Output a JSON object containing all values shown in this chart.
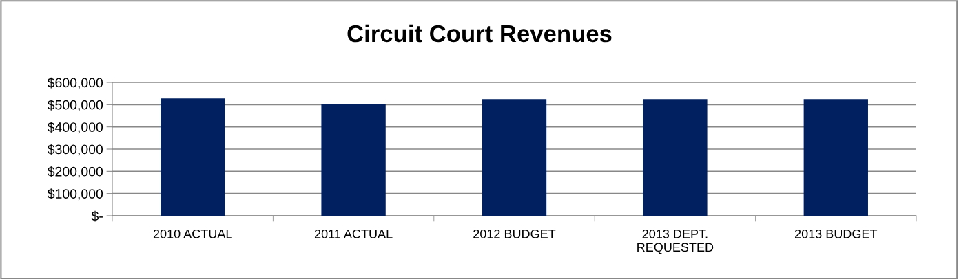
{
  "chart_data": {
    "type": "bar",
    "title": "Circuit Court Revenues",
    "categories": [
      "2010 ACTUAL",
      "2011 ACTUAL",
      "2012 BUDGET",
      "2013 DEPT.\nREQUESTED",
      "2013 BUDGET"
    ],
    "values": [
      528000,
      503000,
      525000,
      525000,
      525000
    ],
    "color": "#002060",
    "ylim": [
      0,
      600000
    ],
    "yticks": [
      {
        "value": 0,
        "label": "$-"
      },
      {
        "value": 100000,
        "label": "$100,000"
      },
      {
        "value": 200000,
        "label": "$200,000"
      },
      {
        "value": 300000,
        "label": "$300,000"
      },
      {
        "value": 400000,
        "label": "$400,000"
      },
      {
        "value": 500000,
        "label": "$500,000"
      },
      {
        "value": 600000,
        "label": "$600,000"
      }
    ],
    "grid": "y",
    "legend": false
  }
}
